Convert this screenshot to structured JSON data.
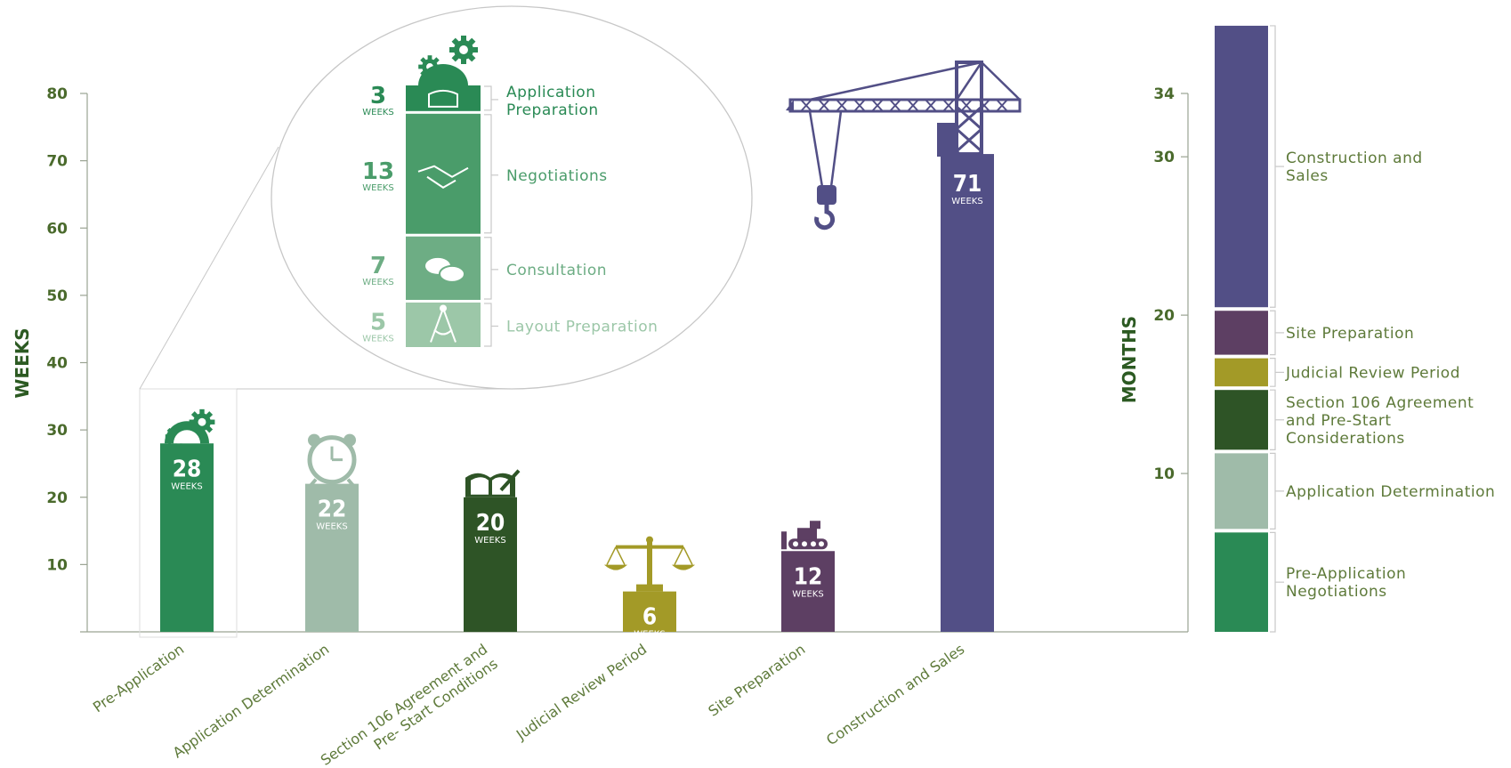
{
  "chart_data": [
    {
      "type": "bar",
      "ylabel": "WEEKS",
      "ylim": [
        0,
        80
      ],
      "yticks": [
        10,
        20,
        30,
        40,
        50,
        60,
        70,
        80
      ],
      "unit_label": "WEEKS",
      "categories": [
        "Pre-Application",
        "Application Determination",
        "Section 106 Agreement and Pre- Start Conditions",
        "Judicial Review Period",
        "Site Preparation",
        "Construction and Sales"
      ],
      "values": [
        28,
        22,
        20,
        6,
        12,
        71
      ],
      "colors": [
        "#2a8a55",
        "#9fbba9",
        "#2e5426",
        "#a39a27",
        "#5d3f63",
        "#524f86"
      ],
      "icons": [
        "gears-dome-icon",
        "alarm-clock-icon",
        "open-book-pen-icon",
        "scales-icon",
        "bulldozer-icon",
        "tower-crane-icon"
      ]
    },
    {
      "type": "stacked-bar-breakdown",
      "of_category": "Pre-Application",
      "unit_label": "WEEKS",
      "segments": [
        {
          "label": "Application Preparation",
          "value": 3,
          "color": "#2a8a55",
          "icon": "book-pen-icon"
        },
        {
          "label": "Negotiations",
          "value": 13,
          "color": "#4a9c6a",
          "icon": "handshake-icon"
        },
        {
          "label": "Consultation",
          "value": 7,
          "color": "#6dad84",
          "icon": "speech-bubbles-icon"
        },
        {
          "label": "Layout Preparation",
          "value": 5,
          "color": "#9cc7a8",
          "icon": "compass-icon"
        }
      ]
    },
    {
      "type": "stacked-bar",
      "ylabel": "MONTHS",
      "ylim": [
        0,
        34
      ],
      "yticks": [
        10,
        20,
        30,
        34
      ],
      "segments": [
        {
          "label": "Pre-Application Negotiations",
          "value": 6.5,
          "color": "#2a8a55"
        },
        {
          "label": "Application Determination",
          "value": 5,
          "color": "#9fbba9"
        },
        {
          "label": "Section 106 Agreement and Pre-Start Considerations",
          "value": 4,
          "color": "#2e5426"
        },
        {
          "label": "Judicial Review Period",
          "value": 2,
          "color": "#a39a27"
        },
        {
          "label": "Site Preparation",
          "value": 3,
          "color": "#5d3f63"
        },
        {
          "label": "Construction and Sales",
          "value": 18,
          "color": "#524f86"
        }
      ]
    }
  ],
  "colors": {
    "axis_text": "#4a6a2c",
    "label_text": "#5e7a3a",
    "axis_line": "#9aa392"
  }
}
